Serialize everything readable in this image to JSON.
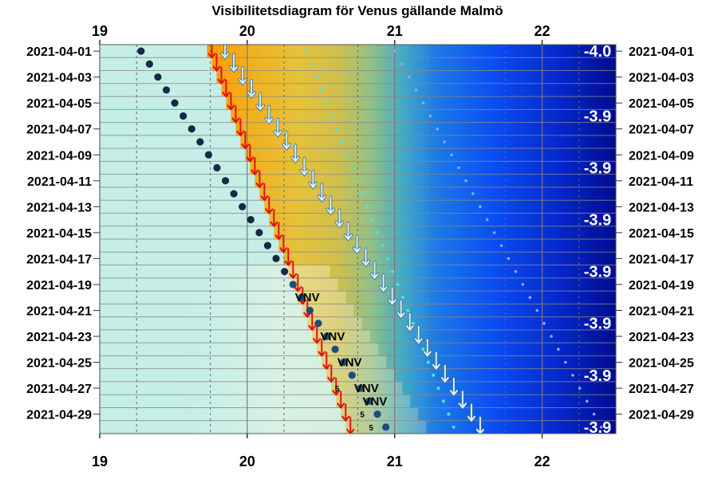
{
  "chart_data": {
    "type": "visibility-diagram",
    "title": "Visibilitetsdiagram för Venus gällande Malmö",
    "x_axis": {
      "ticks": [
        19,
        20,
        21,
        22
      ],
      "range": [
        19,
        22.5
      ],
      "position": "top-and-bottom"
    },
    "y_axis": {
      "start_date": "2021-04-01",
      "end_date": "2021-04-30",
      "labels_both_sides": true
    },
    "date_labels": [
      "2021-04-01",
      "2021-04-03",
      "2021-04-05",
      "2021-04-07",
      "2021-04-09",
      "2021-04-11",
      "2021-04-13",
      "2021-04-15",
      "2021-04-17",
      "2021-04-19",
      "2021-04-21",
      "2021-04-23",
      "2021-04-25",
      "2021-04-27",
      "2021-04-29"
    ],
    "magnitude_labels": [
      {
        "date": "2021-04-01",
        "text": "-4.0"
      },
      {
        "date": "2021-04-06",
        "text": "-3.9"
      },
      {
        "date": "2021-04-10",
        "text": "-3.9"
      },
      {
        "date": "2021-04-14",
        "text": "-3.9"
      },
      {
        "date": "2021-04-18",
        "text": "-3.9"
      },
      {
        "date": "2021-04-22",
        "text": "-3.9"
      },
      {
        "date": "2021-04-26",
        "text": "-3.9"
      },
      {
        "date": "2021-04-30",
        "text": "-3.9"
      }
    ],
    "direction_labels": [
      {
        "date": "2021-04-20",
        "text": "VNV"
      },
      {
        "date": "2021-04-23",
        "text": "VNV"
      },
      {
        "date": "2021-04-25",
        "text": "VNV"
      },
      {
        "date": "2021-04-27",
        "text": "VNV"
      },
      {
        "date": "2021-04-28",
        "text": "VNV"
      }
    ],
    "altitude_labels": [
      {
        "date": "2021-04-27",
        "hour": 20.61,
        "text": "5"
      },
      {
        "date": "2021-04-29",
        "hour": 20.78,
        "text": "5"
      },
      {
        "date": "2021-04-30",
        "hour": 20.84,
        "text": "5"
      }
    ],
    "venus_set": {
      "first_hour": 19.28,
      "last_hour": 20.94,
      "note": "dark dots"
    },
    "sunset": {
      "first_hour": 19.76,
      "last_hour": 20.7,
      "note": "red arrows"
    },
    "civil_twilight_end": {
      "first_hour": 19.85,
      "last_hour": 21.58,
      "note": "white arrows"
    },
    "nautical_twilight_end": {
      "first_hour": 20.4,
      "last_hour": 21.4,
      "note": "cyan dotted line"
    },
    "astronomical_twilight_end": {
      "first_hour": 21.0,
      "last_hour": 22.4,
      "note": "blue dotted line"
    },
    "colors": {
      "day": "#c4eee6",
      "sunset_orange": "#ff9a00",
      "twilight_yellow": "#e8c23a",
      "twilight_blue": "#0a46f0",
      "night": "#000a8c",
      "venus_dot": "#152a44",
      "sunset_arrow": "#e31010",
      "twilight_arrow": "#d8f4ff",
      "nautical_dot": "#56e0d6",
      "astro_dot": "#8aa8ff"
    }
  }
}
